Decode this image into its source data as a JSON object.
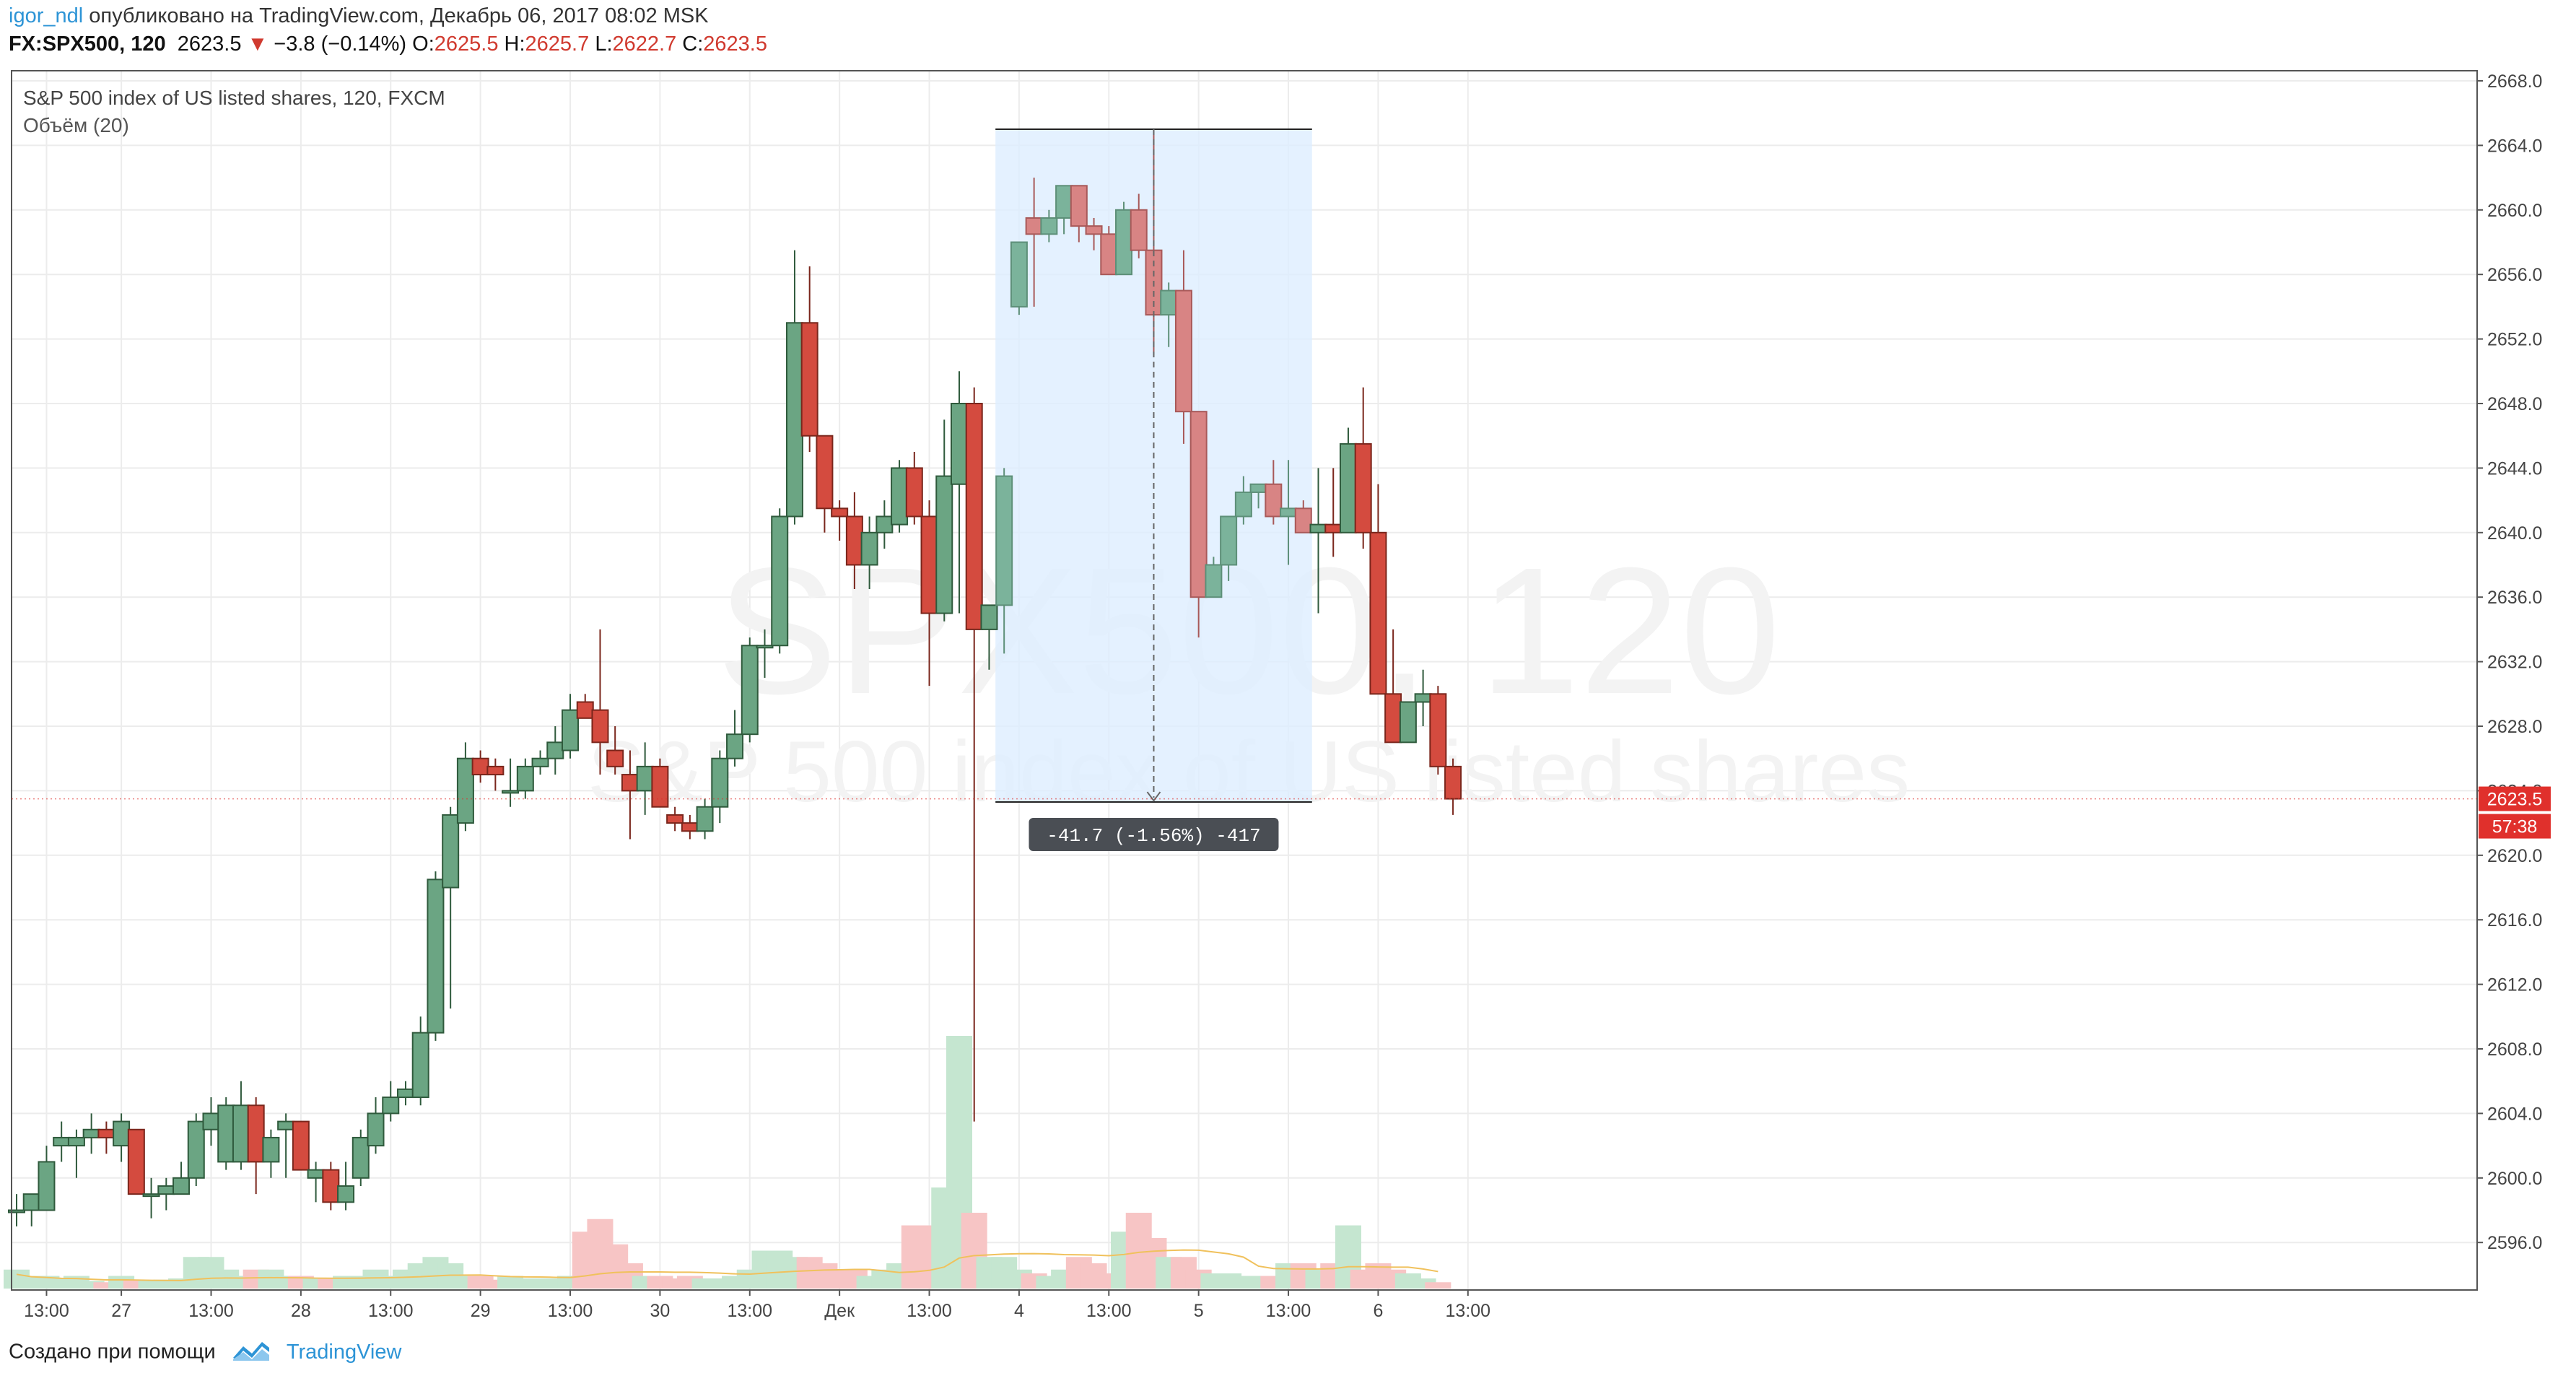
{
  "header": {
    "user": "igor_ndl",
    "published_text": "опубликовано на TradingView.com, Декабрь 06, 2017 08:02 MSK",
    "symbol_line": "FX:SPX500, 120",
    "last": "2623.5",
    "change": "−3.8 (−0.14%)",
    "o_label": "O:",
    "o_value": "2625.5",
    "h_label": "H:",
    "h_value": "2625.7",
    "l_label": "L:",
    "l_value": "2622.7",
    "c_label": "C:",
    "c_value": "2623.5"
  },
  "legend": {
    "title": "S&P 500 index of US listed shares, 120, FXCM",
    "volume": "Объём (20)"
  },
  "watermark": {
    "line1": "SPX500, 120",
    "line2": "S&P 500 index of US listed shares"
  },
  "measure": {
    "label": "-41.7 (-1.56%) -417"
  },
  "price_tag": {
    "price": "2623.5",
    "timer": "57:38"
  },
  "footer": {
    "created_with": "Создано при помощи",
    "brand": "TradingView"
  },
  "colors": {
    "up": "#53a36d",
    "up_fill": "#6ba583",
    "down": "#d44b3f",
    "up_vol": "#c5e6d0",
    "down_vol": "#f7c5c5",
    "volume_ma": "#f0c15c",
    "grid": "#ececec",
    "measure_fill": "#ddeeff",
    "tag": "#e0302c"
  },
  "chart_data": {
    "type": "candlestick",
    "title": "S&P 500 index of US listed shares, 120, FXCM",
    "y_ticks": [
      "2596.0",
      "2600.0",
      "2604.0",
      "2608.0",
      "2612.0",
      "2616.0",
      "2620.0",
      "2624.0",
      "2628.0",
      "2632.0",
      "2636.0",
      "2640.0",
      "2644.0",
      "2648.0",
      "2652.0",
      "2656.0",
      "2660.0",
      "2664.0",
      "2668.0"
    ],
    "ylim": [
      2593.0,
      2670.0
    ],
    "x_ticks": [
      {
        "label": "13:00",
        "i": 2
      },
      {
        "label": "27",
        "i": 7
      },
      {
        "label": "13:00",
        "i": 13
      },
      {
        "label": "28",
        "i": 19
      },
      {
        "label": "13:00",
        "i": 25
      },
      {
        "label": "29",
        "i": 31
      },
      {
        "label": "13:00",
        "i": 37
      },
      {
        "label": "30",
        "i": 43
      },
      {
        "label": "13:00",
        "i": 49
      },
      {
        "label": "Дек",
        "i": 55
      },
      {
        "label": "13:00",
        "i": 61
      },
      {
        "label": "4",
        "i": 67
      },
      {
        "label": "13:00",
        "i": 73
      },
      {
        "label": "5",
        "i": 79
      },
      {
        "label": "13:00",
        "i": 85
      },
      {
        "label": "6",
        "i": 91
      },
      {
        "label": "13:00",
        "i": 97
      }
    ],
    "candles": [
      [
        2598.0,
        2599.0,
        2597.0,
        2598.0
      ],
      [
        2598.0,
        2599.0,
        2597.0,
        2599.0
      ],
      [
        2598.0,
        2602.0,
        2598.0,
        2601.0
      ],
      [
        2602.0,
        2603.5,
        2601.0,
        2602.5
      ],
      [
        2602.0,
        2603.0,
        2600.0,
        2602.5
      ],
      [
        2602.5,
        2604.0,
        2601.5,
        2603.0
      ],
      [
        2603.0,
        2603.5,
        2601.5,
        2602.5
      ],
      [
        2602.0,
        2604.0,
        2601.0,
        2603.5
      ],
      [
        2603.0,
        2603.0,
        2599.0,
        2599.0
      ],
      [
        2599.0,
        2600.0,
        2597.5,
        2599.0
      ],
      [
        2599.0,
        2600.0,
        2598.0,
        2599.5
      ],
      [
        2599.0,
        2601.0,
        2599.0,
        2600.0
      ],
      [
        2600.0,
        2604.0,
        2599.5,
        2603.5
      ],
      [
        2603.0,
        2605.0,
        2602.0,
        2604.0
      ],
      [
        2601.0,
        2605.0,
        2600.5,
        2604.5
      ],
      [
        2601.0,
        2606.0,
        2600.5,
        2604.5
      ],
      [
        2604.5,
        2605.0,
        2599.0,
        2601.0
      ],
      [
        2601.0,
        2603.0,
        2600.0,
        2602.5
      ],
      [
        2603.0,
        2604.0,
        2600.0,
        2603.5
      ],
      [
        2603.5,
        2603.5,
        2600.5,
        2600.5
      ],
      [
        2600.0,
        2601.0,
        2598.5,
        2600.5
      ],
      [
        2600.5,
        2601.0,
        2598.0,
        2598.5
      ],
      [
        2598.5,
        2601.0,
        2598.0,
        2599.5
      ],
      [
        2600.0,
        2603.0,
        2599.5,
        2602.5
      ],
      [
        2602.0,
        2605.0,
        2601.5,
        2604.0
      ],
      [
        2604.0,
        2606.0,
        2603.5,
        2605.0
      ],
      [
        2605.0,
        2606.0,
        2604.5,
        2605.5
      ],
      [
        2605.0,
        2610.0,
        2604.5,
        2609.0
      ],
      [
        2609.0,
        2619.0,
        2608.5,
        2618.5
      ],
      [
        2618.0,
        2623.0,
        2610.5,
        2622.5
      ],
      [
        2622.0,
        2627.0,
        2621.5,
        2626.0
      ],
      [
        2626.0,
        2626.5,
        2624.5,
        2625.0
      ],
      [
        2625.5,
        2626.0,
        2624.0,
        2625.0
      ],
      [
        2624.0,
        2626.0,
        2623.0,
        2624.0
      ],
      [
        2624.0,
        2626.0,
        2623.5,
        2625.5
      ],
      [
        2625.5,
        2626.5,
        2625.0,
        2626.0
      ],
      [
        2626.0,
        2628.0,
        2625.0,
        2627.0
      ],
      [
        2626.5,
        2630.0,
        2626.0,
        2629.0
      ],
      [
        2629.5,
        2630.0,
        2628.5,
        2628.5
      ],
      [
        2629.0,
        2634.0,
        2625.0,
        2627.0
      ],
      [
        2626.5,
        2628.0,
        2625.0,
        2625.5
      ],
      [
        2625.0,
        2626.5,
        2621.0,
        2624.0
      ],
      [
        2624.0,
        2627.0,
        2622.5,
        2625.5
      ],
      [
        2625.5,
        2626.0,
        2623.0,
        2623.0
      ],
      [
        2622.5,
        2623.0,
        2621.5,
        2622.0
      ],
      [
        2622.0,
        2622.5,
        2621.0,
        2621.5
      ],
      [
        2621.5,
        2623.5,
        2621.0,
        2623.0
      ],
      [
        2623.0,
        2626.5,
        2622.0,
        2626.0
      ],
      [
        2626.0,
        2629.0,
        2625.5,
        2627.5
      ],
      [
        2627.5,
        2633.5,
        2627.0,
        2633.0
      ],
      [
        2633.0,
        2634.0,
        2631.0,
        2633.0
      ],
      [
        2633.0,
        2641.5,
        2632.5,
        2641.0
      ],
      [
        2641.0,
        2657.5,
        2640.5,
        2653.0
      ],
      [
        2653.0,
        2656.5,
        2645.0,
        2646.0
      ],
      [
        2646.0,
        2646.0,
        2640.0,
        2641.5
      ],
      [
        2641.5,
        2642.0,
        2639.5,
        2641.0
      ],
      [
        2641.0,
        2642.5,
        2636.5,
        2638.0
      ],
      [
        2638.0,
        2641.0,
        2636.5,
        2640.0
      ],
      [
        2640.0,
        2642.0,
        2639.0,
        2641.0
      ],
      [
        2640.5,
        2644.5,
        2640.0,
        2644.0
      ],
      [
        2644.0,
        2645.0,
        2640.5,
        2641.0
      ],
      [
        2641.0,
        2642.0,
        2630.5,
        2635.0
      ],
      [
        2635.0,
        2647.0,
        2634.5,
        2643.5
      ],
      [
        2643.0,
        2650.0,
        2635.0,
        2648.0
      ],
      [
        2648.0,
        2649.0,
        2603.5,
        2634.0
      ],
      [
        2634.0,
        2635.5,
        2631.5,
        2635.5
      ],
      [
        2635.5,
        2644.0,
        2632.5,
        2643.5
      ],
      [
        2654.0,
        2658.0,
        2653.5,
        2658.0
      ],
      [
        2659.5,
        2662.0,
        2654.0,
        2658.5
      ],
      [
        2658.5,
        2660.0,
        2658.0,
        2659.5
      ],
      [
        2659.5,
        2661.5,
        2658.5,
        2661.5
      ],
      [
        2661.5,
        2661.5,
        2658.0,
        2659.0
      ],
      [
        2659.0,
        2659.5,
        2657.5,
        2658.5
      ],
      [
        2658.5,
        2659.0,
        2656.0,
        2656.0
      ],
      [
        2656.0,
        2660.5,
        2656.0,
        2660.0
      ],
      [
        2660.0,
        2661.0,
        2657.0,
        2657.5
      ],
      [
        2657.5,
        2665.0,
        2651.0,
        2653.5
      ],
      [
        2653.5,
        2655.5,
        2651.5,
        2655.0
      ],
      [
        2655.0,
        2657.5,
        2645.5,
        2647.5
      ],
      [
        2647.5,
        2647.5,
        2633.5,
        2636.0
      ],
      [
        2636.0,
        2638.5,
        2636.0,
        2638.0
      ],
      [
        2638.0,
        2641.0,
        2637.0,
        2641.0
      ],
      [
        2641.0,
        2643.5,
        2640.5,
        2642.5
      ],
      [
        2642.5,
        2643.0,
        2641.5,
        2643.0
      ],
      [
        2643.0,
        2644.5,
        2640.5,
        2641.0
      ],
      [
        2641.0,
        2644.5,
        2638.0,
        2641.5
      ],
      [
        2641.5,
        2642.0,
        2640.0,
        2640.0
      ],
      [
        2640.0,
        2644.0,
        2635.0,
        2640.5
      ],
      [
        2640.5,
        2644.0,
        2638.5,
        2640.0
      ],
      [
        2640.0,
        2646.5,
        2640.0,
        2645.5
      ],
      [
        2645.5,
        2649.0,
        2639.0,
        2640.0
      ],
      [
        2640.0,
        2643.0,
        2630.0,
        2630.0
      ],
      [
        2630.0,
        2634.0,
        2627.5,
        2627.0
      ],
      [
        2627.0,
        2629.5,
        2627.0,
        2629.5
      ],
      [
        2629.5,
        2631.5,
        2628.0,
        2630.0
      ],
      [
        2630.0,
        2630.5,
        2625.0,
        2625.5
      ],
      [
        2625.5,
        2626.0,
        2622.5,
        2623.5
      ]
    ],
    "volume_ma": "approx. flat line near 1.5–2 units, rising to ~4.5 around Dec 4",
    "volumes": [
      1.5,
      1,
      1,
      0.8,
      1,
      0.6,
      0.5,
      1,
      0.7,
      0.6,
      0.7,
      0.8,
      2.5,
      2.5,
      1.5,
      1,
      1.5,
      1.5,
      1,
      1,
      0.8,
      0.8,
      1,
      1,
      1.5,
      1,
      1.5,
      2,
      2.5,
      2,
      1,
      1,
      0.7,
      1,
      0.8,
      0.8,
      0.8,
      1,
      4.5,
      5.5,
      3.5,
      2,
      1,
      1,
      0.8,
      1,
      0.8,
      0.8,
      1,
      1.5,
      3,
      3,
      2.5,
      2.5,
      2,
      1.5,
      1.5,
      1,
      1.5,
      2,
      5,
      5,
      8,
      20,
      6,
      2.5,
      2.5,
      1.5,
      1.2,
      1,
      1.5,
      2.5,
      2,
      1.2,
      4.5,
      6,
      4,
      2.5,
      2.5,
      1.5,
      1.2,
      1.2,
      1,
      1,
      1,
      2,
      2,
      1.5,
      2,
      5,
      1.5,
      2,
      1.5,
      1.2,
      0.8,
      0.5
    ],
    "measure": {
      "from_index": 66,
      "to_index": 86,
      "top_price": 2665.0,
      "bottom_price": 2623.3,
      "change": -41.7,
      "pct": -1.56,
      "bars": -417
    }
  }
}
